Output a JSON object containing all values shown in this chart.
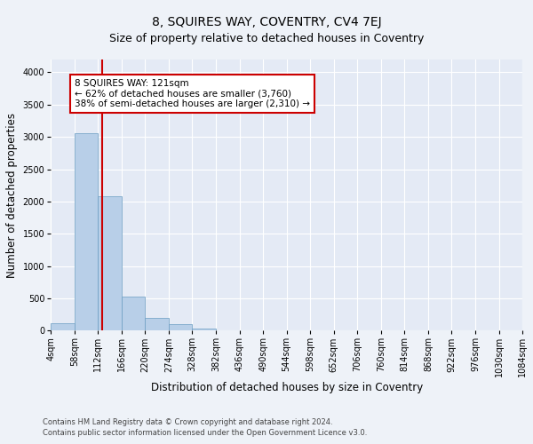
{
  "title": "8, SQUIRES WAY, COVENTRY, CV4 7EJ",
  "subtitle": "Size of property relative to detached houses in Coventry",
  "xlabel": "Distribution of detached houses by size in Coventry",
  "ylabel": "Number of detached properties",
  "footnote1": "Contains HM Land Registry data © Crown copyright and database right 2024.",
  "footnote2": "Contains public sector information licensed under the Open Government Licence v3.0.",
  "bin_edges": [
    4,
    58,
    112,
    166,
    220,
    274,
    328,
    382,
    436,
    490,
    544,
    598,
    652,
    706,
    760,
    814,
    868,
    922,
    976,
    1030,
    1084
  ],
  "bin_labels": [
    "4sqm",
    "58sqm",
    "112sqm",
    "166sqm",
    "220sqm",
    "274sqm",
    "328sqm",
    "382sqm",
    "436sqm",
    "490sqm",
    "544sqm",
    "598sqm",
    "652sqm",
    "706sqm",
    "760sqm",
    "814sqm",
    "868sqm",
    "922sqm",
    "976sqm",
    "1030sqm",
    "1084sqm"
  ],
  "bar_heights": [
    120,
    3060,
    2080,
    530,
    200,
    95,
    30,
    10,
    5,
    3,
    2,
    1,
    1,
    0,
    0,
    0,
    0,
    0,
    0,
    0
  ],
  "bar_color": "#b8cfe8",
  "bar_edge_color": "#6b9dc2",
  "vline_x": 121,
  "vline_color": "#cc0000",
  "annotation_text": "8 SQUIRES WAY: 121sqm\n← 62% of detached houses are smaller (3,760)\n38% of semi-detached houses are larger (2,310) →",
  "annotation_box_color": "#ffffff",
  "annotation_box_edge": "#cc0000",
  "ylim": [
    0,
    4200
  ],
  "yticks": [
    0,
    500,
    1000,
    1500,
    2000,
    2500,
    3000,
    3500,
    4000
  ],
  "bg_color": "#eef2f8",
  "plot_bg_color": "#e4eaf5",
  "grid_color": "#ffffff",
  "title_fontsize": 10,
  "subtitle_fontsize": 9,
  "axis_label_fontsize": 8.5,
  "tick_fontsize": 7,
  "annotation_fontsize": 7.5,
  "footnote_fontsize": 6
}
